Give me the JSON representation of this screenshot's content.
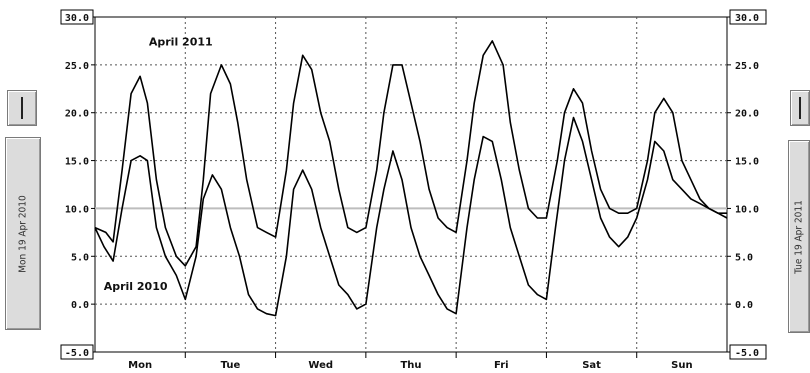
{
  "left_panel": {
    "date_label": "Mon 19 Apr 2010"
  },
  "right_panel": {
    "date_label": "Tue 19 Apr 2011"
  },
  "chart_data": {
    "type": "line",
    "title": "",
    "xlabel": "",
    "ylabel": "",
    "ylim": [
      -5,
      30
    ],
    "y_ticks": [
      "30.0",
      "25.0",
      "20.0",
      "15.0",
      "10.0",
      "5.0",
      "0.0",
      "-5.0"
    ],
    "y_tick_values": [
      30,
      25,
      20,
      15,
      10,
      5,
      0,
      -5
    ],
    "categories": [
      "Mon",
      "Tue",
      "Wed",
      "Thu",
      "Fri",
      "Sat",
      "Sun"
    ],
    "x_range_days": [
      0,
      7
    ],
    "grid": true,
    "series": [
      {
        "name": "April 2011",
        "color": "#000000",
        "x": [
          0,
          0.12,
          0.2,
          0.3,
          0.4,
          0.5,
          0.58,
          0.68,
          0.78,
          0.9,
          1.0,
          1.12,
          1.2,
          1.28,
          1.4,
          1.5,
          1.58,
          1.68,
          1.8,
          1.9,
          2.0,
          2.12,
          2.2,
          2.3,
          2.4,
          2.5,
          2.6,
          2.7,
          2.8,
          2.9,
          3.0,
          3.12,
          3.2,
          3.3,
          3.4,
          3.5,
          3.6,
          3.7,
          3.8,
          3.9,
          4.0,
          4.12,
          4.2,
          4.3,
          4.4,
          4.52,
          4.6,
          4.7,
          4.8,
          4.9,
          5.0,
          5.12,
          5.2,
          5.3,
          5.4,
          5.5,
          5.6,
          5.7,
          5.8,
          5.9,
          6.0,
          6.12,
          6.2,
          6.3,
          6.4,
          6.5,
          6.6,
          6.7,
          6.8,
          6.9,
          7.0
        ],
        "values": [
          8,
          7.5,
          6.5,
          14,
          22,
          23.8,
          21,
          13,
          8,
          5,
          4,
          6,
          13,
          22,
          25,
          23,
          19,
          13,
          8,
          7.5,
          7,
          14,
          21,
          26,
          24.5,
          20,
          17,
          12,
          8,
          7.5,
          8,
          14,
          20,
          25,
          25,
          21,
          17,
          12,
          9,
          8,
          7.5,
          15,
          21,
          26,
          27.5,
          25,
          19,
          14,
          10,
          9,
          9,
          15,
          20,
          22.5,
          21,
          16,
          12,
          10,
          9.5,
          9.5,
          10,
          15,
          20,
          21.5,
          20,
          15,
          13,
          11,
          10,
          9.5,
          9
        ]
      },
      {
        "name": "April 2010",
        "color": "#000000",
        "x": [
          0,
          0.1,
          0.2,
          0.3,
          0.4,
          0.5,
          0.58,
          0.68,
          0.78,
          0.9,
          1.0,
          1.12,
          1.2,
          1.3,
          1.4,
          1.5,
          1.6,
          1.7,
          1.8,
          1.9,
          2.0,
          2.12,
          2.2,
          2.3,
          2.4,
          2.5,
          2.6,
          2.7,
          2.8,
          2.9,
          3.0,
          3.12,
          3.2,
          3.3,
          3.4,
          3.5,
          3.6,
          3.7,
          3.8,
          3.9,
          4.0,
          4.12,
          4.2,
          4.3,
          4.4,
          4.5,
          4.6,
          4.7,
          4.8,
          4.9,
          5.0,
          5.1,
          5.2,
          5.3,
          5.4,
          5.5,
          5.6,
          5.7,
          5.8,
          5.9,
          6.0,
          6.12,
          6.2,
          6.3,
          6.4,
          6.5,
          6.6,
          6.7,
          6.8,
          6.9,
          7.0
        ],
        "values": [
          8,
          6,
          4.5,
          10,
          15,
          15.5,
          15,
          8,
          5,
          3,
          0.5,
          5,
          11,
          13.5,
          12,
          8,
          5,
          1,
          -0.5,
          -1,
          -1.2,
          5,
          12,
          14,
          12,
          8,
          5,
          2,
          1,
          -0.5,
          0,
          8,
          12,
          16,
          13,
          8,
          5,
          3,
          1,
          -0.5,
          -1,
          8,
          13,
          17.5,
          17,
          13,
          8,
          5,
          2,
          1,
          0.5,
          8,
          15,
          19.5,
          17,
          13,
          9,
          7,
          6,
          7,
          9,
          13,
          17,
          16,
          13,
          12,
          11,
          10.5,
          10,
          9.5,
          9.5
        ]
      }
    ],
    "annotations": [
      {
        "text": "April 2011",
        "x": 0.95,
        "y": 27
      },
      {
        "text": "April 2010",
        "x": 0.45,
        "y": 1.5
      }
    ]
  }
}
